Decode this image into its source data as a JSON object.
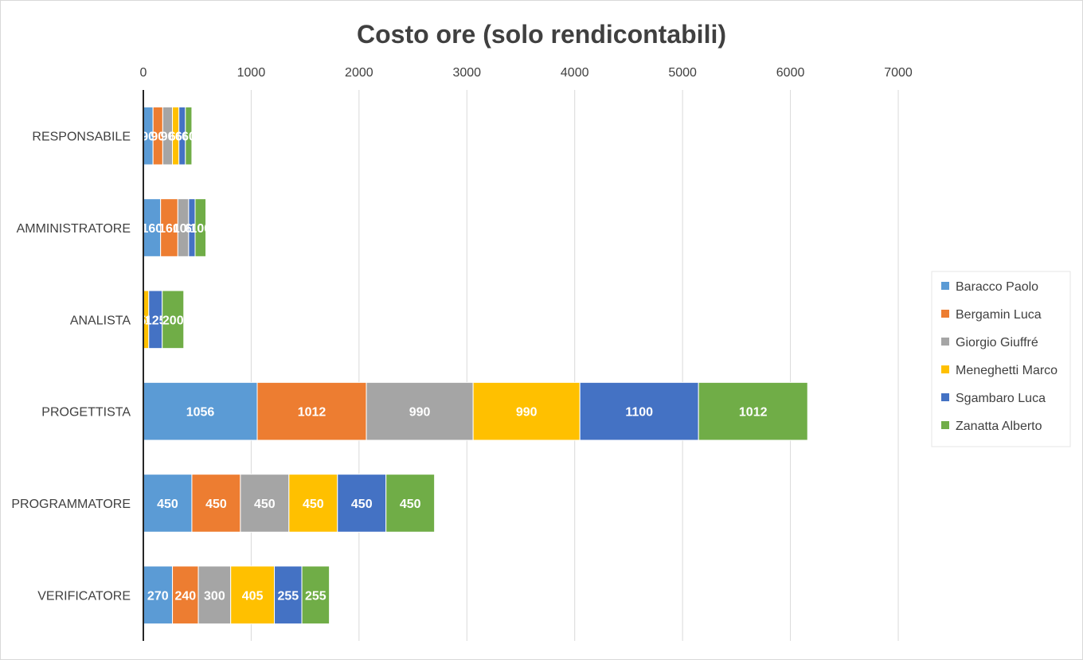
{
  "chart_data": {
    "type": "bar",
    "orientation": "horizontal",
    "stacked": true,
    "title": "Costo ore (solo rendicontabili)",
    "xlabel": "",
    "ylabel": "",
    "xlim": [
      0,
      7000
    ],
    "x_ticks": [
      0,
      1000,
      2000,
      3000,
      4000,
      5000,
      6000,
      7000
    ],
    "grid": true,
    "legend_position": "right",
    "categories": [
      "RESPONSABILE",
      "AMMINISTRATORE",
      "ANALISTA",
      "PROGETTISTA",
      "PROGRAMMATORE",
      "VERIFICATORE"
    ],
    "series": [
      {
        "name": "Baracco Paolo",
        "color": "#5b9bd5",
        "values": [
          90,
          160,
          0,
          1056,
          450,
          270
        ]
      },
      {
        "name": "Bergamin Luca",
        "color": "#ed7d31",
        "values": [
          90,
          160,
          0,
          1012,
          450,
          240
        ]
      },
      {
        "name": "Giorgio Giuffré",
        "color": "#a5a5a5",
        "values": [
          90,
          100,
          0,
          990,
          450,
          300
        ]
      },
      {
        "name": "Meneghetti Marco",
        "color": "#ffc000",
        "values": [
          60,
          0,
          50,
          990,
          450,
          405
        ]
      },
      {
        "name": "Sgambaro Luca",
        "color": "#4472c4",
        "values": [
          60,
          60,
          125,
          1100,
          450,
          255
        ]
      },
      {
        "name": "Zanatta Alberto",
        "color": "#70ad47",
        "values": [
          60,
          100,
          200,
          1012,
          450,
          255
        ]
      }
    ]
  }
}
